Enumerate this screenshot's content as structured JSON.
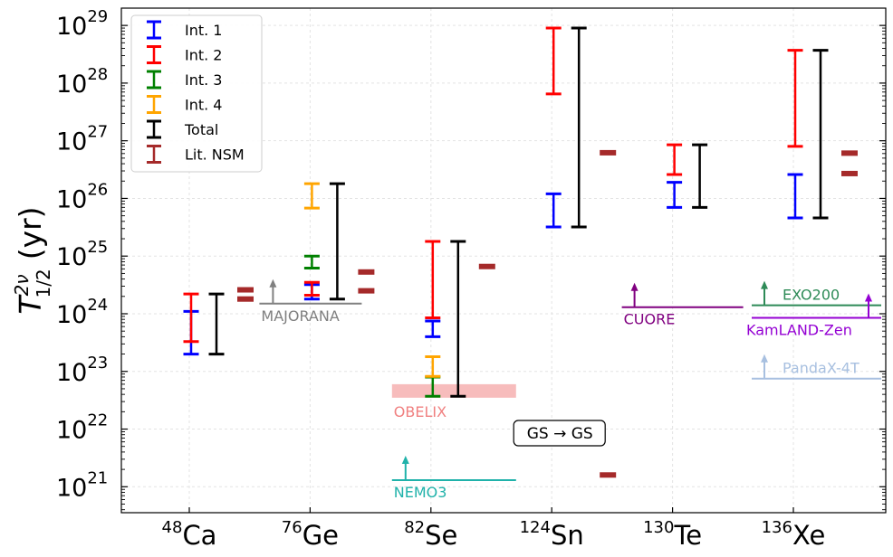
{
  "chart_data": {
    "type": "errorbar",
    "ylabel": "T^{2ν}_{1/2} (yr)",
    "ylabel_main": "T",
    "ylabel_sup": "2ν",
    "ylabel_sub": "1/2",
    "ylabel_unit": "(yr)",
    "y_scale": "log",
    "ylim_exp": [
      20.55,
      29.3
    ],
    "y_ticks": [
      {
        "exp": 21,
        "base": "10",
        "sup": "21"
      },
      {
        "exp": 22,
        "base": "10",
        "sup": "22"
      },
      {
        "exp": 23,
        "base": "10",
        "sup": "23"
      },
      {
        "exp": 24,
        "base": "10",
        "sup": "24"
      },
      {
        "exp": 25,
        "base": "10",
        "sup": "25"
      },
      {
        "exp": 26,
        "base": "10",
        "sup": "26"
      },
      {
        "exp": 27,
        "base": "10",
        "sup": "27"
      },
      {
        "exp": 28,
        "base": "10",
        "sup": "28"
      },
      {
        "exp": 29,
        "base": "10",
        "sup": "29"
      }
    ],
    "categories": [
      {
        "id": "ca48",
        "sup": "48",
        "name": "Ca"
      },
      {
        "id": "ge76",
        "sup": "76",
        "name": "Ge"
      },
      {
        "id": "se82",
        "sup": "82",
        "name": "Se"
      },
      {
        "id": "sn124",
        "sup": "124",
        "name": "Sn"
      },
      {
        "id": "te130",
        "sup": "130",
        "name": "Te"
      },
      {
        "id": "xe136",
        "sup": "136",
        "name": "Xe"
      }
    ],
    "legend": {
      "location": "top-left",
      "entries": [
        {
          "label": "Int. 1",
          "color": "#0000ff"
        },
        {
          "label": "Int. 2",
          "color": "#ff0000"
        },
        {
          "label": "Int. 3",
          "color": "#008000"
        },
        {
          "label": "Int. 4",
          "color": "#ffa500"
        },
        {
          "label": "Total",
          "color": "#000000"
        },
        {
          "label": "Lit. NSM",
          "color": "#a52a2a"
        }
      ]
    },
    "series": [
      {
        "name": "Int. 1",
        "color": "#0000ff",
        "intervals": [
          {
            "category": "ca48",
            "low": 2e+23,
            "high": 1.1e+24
          },
          {
            "category": "ge76",
            "low": 1.8e+24,
            "high": 3.2e+24
          },
          {
            "category": "se82",
            "low": 4e+23,
            "high": 7.5e+23
          },
          {
            "category": "sn124",
            "low": 3.2e+25,
            "high": 1.2e+26
          },
          {
            "category": "te130",
            "low": 7e+25,
            "high": 1.9e+26
          },
          {
            "category": "xe136",
            "low": 4.6e+25,
            "high": 2.6e+26
          }
        ]
      },
      {
        "name": "Int. 2",
        "color": "#ff0000",
        "intervals": [
          {
            "category": "ca48",
            "low": 3.3e+23,
            "high": 2.2e+24
          },
          {
            "category": "ge76",
            "low": 2.1e+24,
            "high": 3.5e+24
          },
          {
            "category": "se82",
            "low": 8.5e+23,
            "high": 1.8e+25
          },
          {
            "category": "sn124",
            "low": 6.5e+27,
            "high": 9e+28
          },
          {
            "category": "te130",
            "low": 2.6e+26,
            "high": 8.5e+26
          },
          {
            "category": "xe136",
            "low": 8e+26,
            "high": 3.7e+28
          }
        ]
      },
      {
        "name": "Int. 3",
        "color": "#008000",
        "intervals": [
          {
            "category": "ge76",
            "low": 6.2e+24,
            "high": 1e+25
          },
          {
            "category": "se82",
            "low": 3.7e+22,
            "high": 8e+22
          }
        ]
      },
      {
        "name": "Int. 4",
        "color": "#ffa500",
        "intervals": [
          {
            "category": "ge76",
            "low": 6.8e+25,
            "high": 1.8e+26
          },
          {
            "category": "se82",
            "low": 8.2e+22,
            "high": 1.8e+23
          }
        ]
      },
      {
        "name": "Total",
        "color": "#000000",
        "intervals": [
          {
            "category": "ca48",
            "low": 2e+23,
            "high": 2.2e+24
          },
          {
            "category": "ge76",
            "low": 1.8e+24,
            "high": 1.8e+26
          },
          {
            "category": "se82",
            "low": 3.7e+22,
            "high": 1.8e+25
          },
          {
            "category": "sn124",
            "low": 3.2e+25,
            "high": 9e+28
          },
          {
            "category": "te130",
            "low": 7e+25,
            "high": 8.5e+26
          },
          {
            "category": "xe136",
            "low": 4.6e+25,
            "high": 3.7e+28
          }
        ]
      },
      {
        "name": "Lit. NSM",
        "color": "#a52a2a",
        "markers": [
          {
            "category": "ca48",
            "values": [
              1.8e+24,
              2.6e+24
            ]
          },
          {
            "category": "ge76",
            "values": [
              2.5e+24,
              5.3e+24
            ]
          },
          {
            "category": "se82",
            "values": [
              6.6e+24
            ]
          },
          {
            "category": "sn124",
            "values": [
              1.6e+21,
              6.2e+26
            ]
          },
          {
            "category": "te130",
            "values": []
          },
          {
            "category": "xe136",
            "values": [
              2.7e+26,
              6.1e+26
            ]
          }
        ]
      }
    ],
    "experiments": [
      {
        "label": "MAJORANA",
        "color": "#808080",
        "value": 1.5e+24,
        "category": "ge76",
        "label_position": "below"
      },
      {
        "label": "OBELIX",
        "color": "#f4a6a6",
        "band": [
          3.5e+22,
          6e+22
        ],
        "category": "se82",
        "label_position": "below"
      },
      {
        "label": "NEMO3",
        "color": "#20b2aa",
        "value": 1.3e+21,
        "category": "se82",
        "label_position": "below"
      },
      {
        "label": "CUORE",
        "color": "#800080",
        "value": 1.3e+24,
        "category": "te130",
        "label_position": "below"
      },
      {
        "label": "EXO200",
        "color": "#2e8b57",
        "value": 1.4e+24,
        "category": "xe136",
        "label_position": "above"
      },
      {
        "label": "KamLAND-Zen",
        "color": "#9400d3",
        "value": 8.5e+23,
        "category": "xe136",
        "label_position": "below"
      },
      {
        "label": "PandaX-4T",
        "color": "#a8c0e0",
        "value": 7.5e+22,
        "category": "xe136",
        "label_position": "above"
      }
    ],
    "annotation": {
      "text": "GS → GS",
      "category": "sn124"
    }
  }
}
